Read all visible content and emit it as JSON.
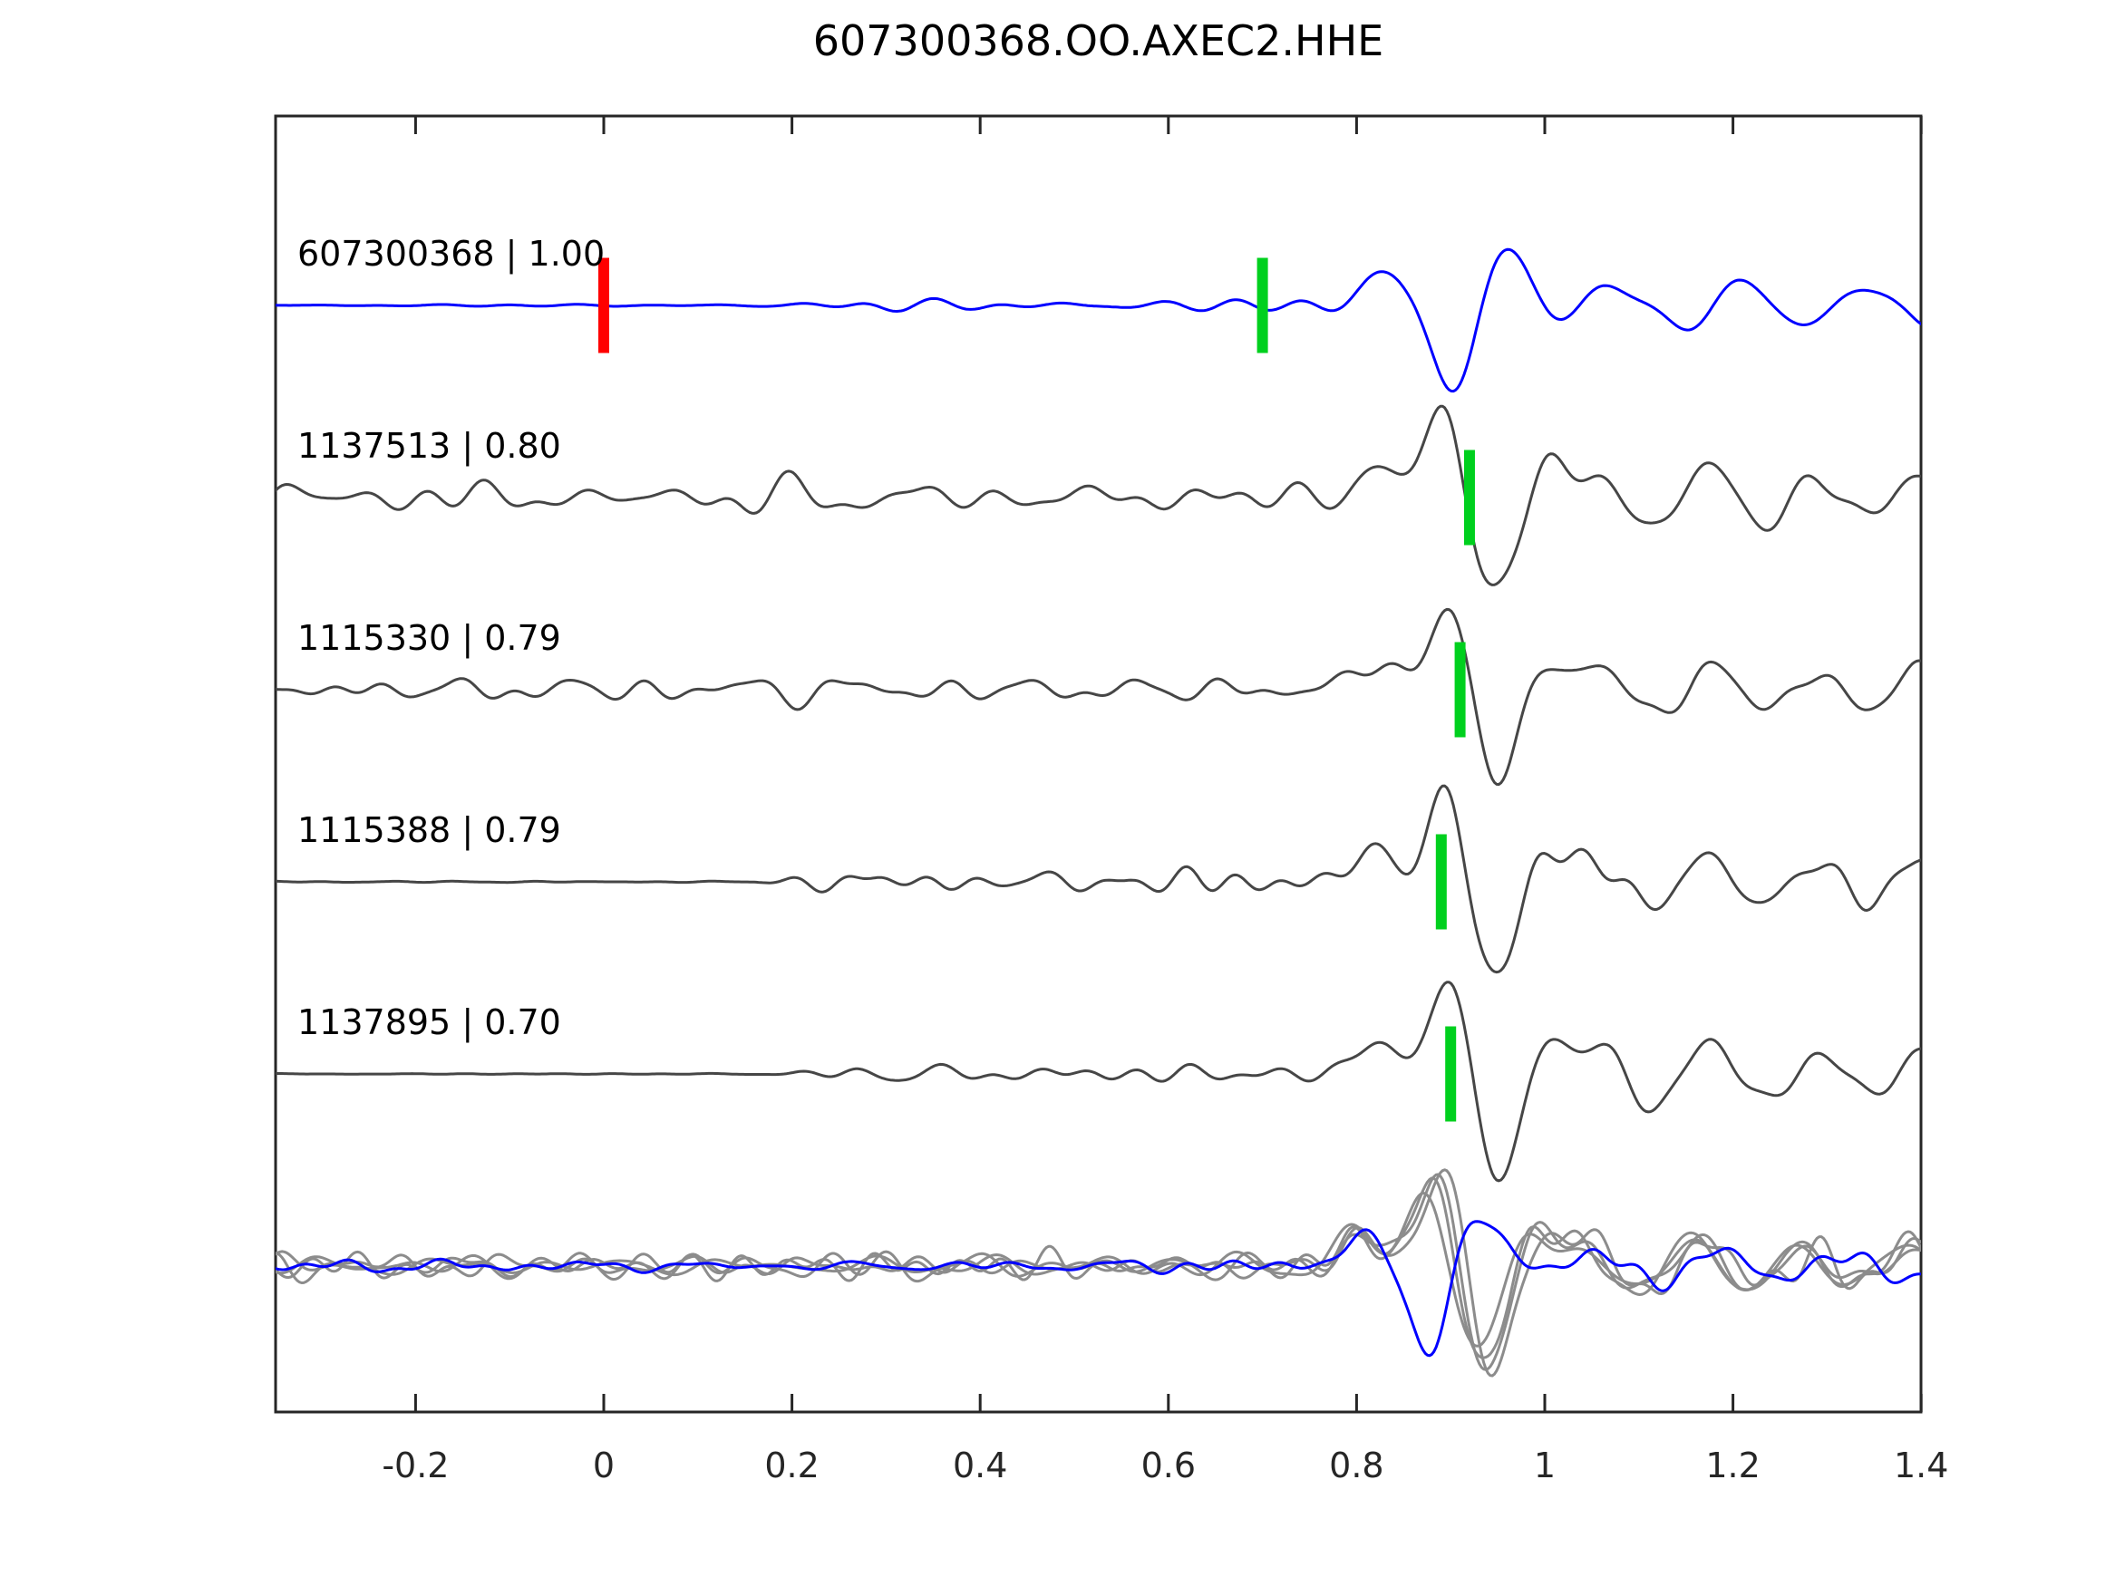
{
  "title": "607300368.OO.AXEC2.HHE",
  "chart_data": {
    "type": "line",
    "title": "607300368.OO.AXEC2.HHE",
    "xlabel": "",
    "ylabel": "",
    "xlim": [
      -0.35,
      1.4
    ],
    "x_tick_values": [
      -0.2,
      0,
      0.2,
      0.4,
      0.6,
      0.8,
      1,
      1.2,
      1.4
    ],
    "x_tick_labels": [
      "-0.2",
      "0",
      "0.2",
      "0.4",
      "0.6",
      "0.8",
      "1",
      "1.2",
      "1.4"
    ],
    "grid": false,
    "legend_position": "none",
    "description": "Seismogram template-matching plot: template waveform (blue, top) above four detected event waveforms (dark gray), each labelled 'id | correlation'. Green bars mark pick times on each trace; red bar marks time zero on the template. Bottom row overlays all detections (light gray) with the template (blue).",
    "traces": [
      {
        "id": "607300368",
        "correlation": 1.0,
        "label": "607300368 | 1.00",
        "color": "#0000ff",
        "row": 0,
        "pick_time": 0.7,
        "origin_marker_time": 0.0,
        "arrival_time": 0.905,
        "polarity": "down-first",
        "quiet_start": true,
        "noise_amp": 7,
        "arrival_amp": 118
      },
      {
        "id": "1137513",
        "correlation": 0.8,
        "label": "1137513 | 0.80",
        "color": "#464646",
        "row": 1,
        "pick_time": 0.92,
        "arrival_time": 0.898,
        "polarity": "up-first",
        "quiet_start": false,
        "noise_amp": 14,
        "arrival_amp": 112
      },
      {
        "id": "1115330",
        "correlation": 0.79,
        "label": "1115330 | 0.79",
        "color": "#464646",
        "row": 2,
        "pick_time": 0.91,
        "arrival_time": 0.9,
        "polarity": "up-first",
        "quiet_start": false,
        "noise_amp": 10,
        "arrival_amp": 106
      },
      {
        "id": "1115388",
        "correlation": 0.79,
        "label": "1115388 | 0.79",
        "color": "#464646",
        "row": 3,
        "pick_time": 0.89,
        "arrival_time": 0.897,
        "polarity": "up-first",
        "quiet_start": true,
        "noise_amp": 10,
        "arrival_amp": 112
      },
      {
        "id": "1137895",
        "correlation": 0.7,
        "label": "1137895 | 0.70",
        "color": "#464646",
        "row": 4,
        "pick_time": 0.9,
        "arrival_time": 0.9,
        "polarity": "up-first",
        "quiet_start": true,
        "noise_amp": 9,
        "arrival_amp": 118
      }
    ],
    "overlay_row": {
      "row": 5,
      "gray_color": "#8c8c8c",
      "template_color": "#0000ff",
      "gray_arrival_time": 0.885,
      "template_arrival_time": 0.878,
      "description": "all detections (gray) aligned and overlaid with template (blue)"
    },
    "markers": {
      "pick_color": "#00d01e",
      "origin_color": "#ff0000"
    },
    "axis_color": "#262626",
    "tick_direction": "in"
  }
}
